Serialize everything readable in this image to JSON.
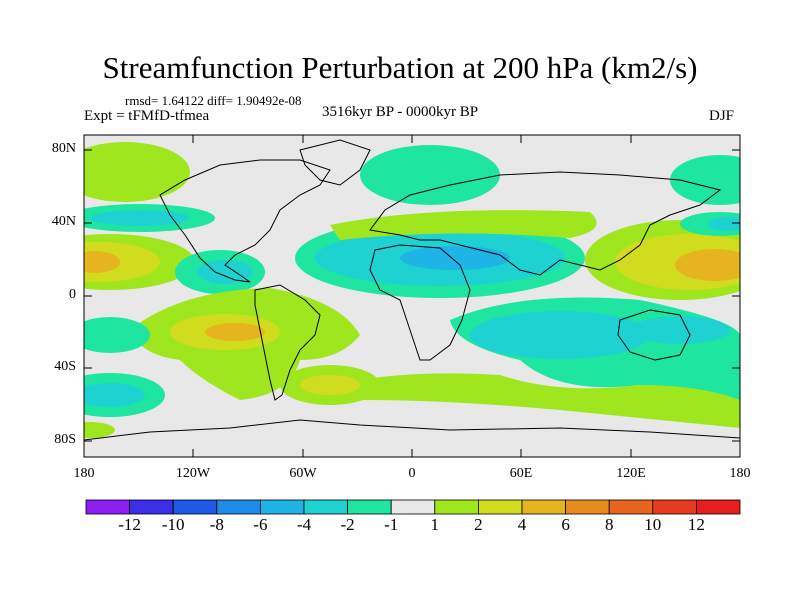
{
  "title": "Streamfunction Perturbation at 200 hPa (km2/s)",
  "stats_line": "rmsd= 1.64122 diff= 1.90492e-08",
  "experiment": "Expt = tFMfD-tfmea",
  "period": "3516kyr BP - 0000kyr BP",
  "season": "DJF",
  "lat_ticks": [
    "80N",
    "40N",
    "0",
    "40S",
    "80S"
  ],
  "lon_ticks": [
    "180",
    "120W",
    "60W",
    "0",
    "60E",
    "120E",
    "180"
  ],
  "colorbar": {
    "labels": [
      "-12",
      "-10",
      "-8",
      "-6",
      "-4",
      "-2",
      "-1",
      "1",
      "2",
      "4",
      "6",
      "8",
      "10",
      "12"
    ],
    "colors": [
      "#8c1ef0",
      "#3c2de6",
      "#1e5ae6",
      "#1e8ce6",
      "#1eb4e6",
      "#1ed2d2",
      "#1ee6a0",
      "#e8e8e8",
      "#a0e61e",
      "#d2dc1e",
      "#e6b41e",
      "#e68c1e",
      "#e6641e",
      "#e63c1e",
      "#e61e1e"
    ]
  }
}
